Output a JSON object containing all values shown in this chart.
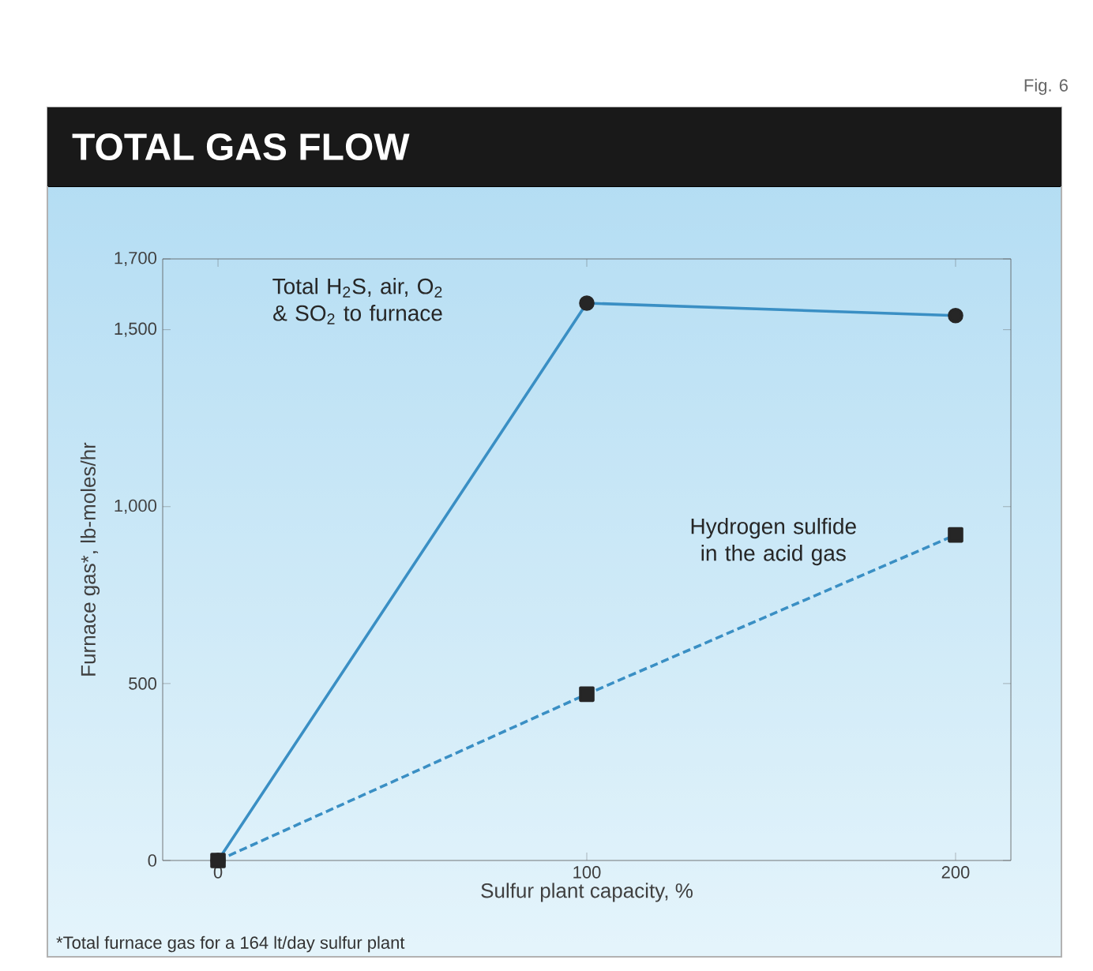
{
  "chart_data": {
    "type": "line",
    "title": "TOTAL GAS FLOW",
    "xlabel": "Sulfur plant capacity, %",
    "ylabel": "Furnace gas*, lb-moles/hr",
    "x": [
      0,
      100,
      200
    ],
    "series": [
      {
        "name": "Total H$_{2}$S, air, O$_{2}$ & SO$_{2}$ to furnace",
        "color": "#3a8fc4",
        "marker": "circle",
        "line_style": "solid",
        "values": [
          0,
          1575,
          1540
        ]
      },
      {
        "name": "Hydrogen sulfide in the acid gas",
        "color": "#3a8fc4",
        "marker": "square",
        "line_style": "dashed",
        "values": [
          0,
          470,
          920
        ]
      }
    ],
    "xlim": [
      -15,
      215
    ],
    "ylim": [
      0,
      1700
    ],
    "xticks": [
      0,
      100,
      200
    ],
    "yticks": [
      0,
      500,
      {
        "value": 1000,
        "label": "1,000"
      },
      {
        "value": 1500,
        "label": "1,500"
      },
      {
        "value": 1700,
        "label": "1,700"
      }
    ],
    "grid": false,
    "annotations": [
      "Fig. 6",
      "*Total furnace gas for a 164 lt/day sulfur plant"
    ]
  }
}
